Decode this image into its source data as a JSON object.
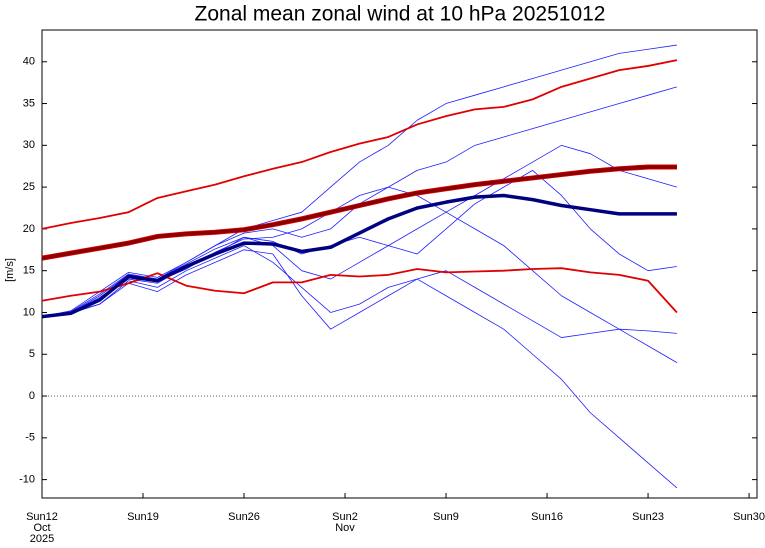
{
  "chart_data": {
    "type": "line",
    "title": "Zonal mean zonal wind at 10 hPa 20251012",
    "y_label": "[m/s]",
    "x": [
      0,
      2,
      4,
      6,
      8,
      10,
      12,
      14,
      16,
      18,
      20,
      22,
      24,
      26,
      28,
      30,
      32,
      34,
      36,
      38,
      40,
      42,
      44
    ],
    "xlim": [
      0,
      49.55
    ],
    "xticks": [
      {
        "value": 0,
        "label": "Sun12"
      },
      {
        "value": 7,
        "label": "Sun19"
      },
      {
        "value": 14,
        "label": "Sun26"
      },
      {
        "value": 21,
        "label": "Sun2"
      },
      {
        "value": 28,
        "label": "Sun9"
      },
      {
        "value": 35,
        "label": "Sun16"
      },
      {
        "value": 42,
        "label": "Sun23"
      },
      {
        "value": 49,
        "label": "Sun30"
      }
    ],
    "x_month_labels": [
      {
        "value": 0,
        "label": "Oct"
      },
      {
        "value": 21,
        "label": "Nov"
      }
    ],
    "x_year_label": {
      "value": 0,
      "label": "2025"
    },
    "ylim": [
      -12.2,
      43.8
    ],
    "yticks": [
      -10,
      -5,
      0,
      5,
      10,
      15,
      20,
      25,
      30,
      35,
      40
    ],
    "reference_line": 0,
    "series": [
      {
        "color": "#1f1fff",
        "width": 0.8,
        "values": [
          9.5,
          10,
          12,
          14.5,
          14,
          16,
          18,
          20,
          21,
          22,
          25,
          28,
          30,
          33,
          35,
          36,
          37,
          38,
          39,
          40,
          41,
          41.5,
          42
        ]
      },
      {
        "color": "#1f1fff",
        "width": 0.8,
        "values": [
          9.5,
          10,
          11,
          13.8,
          13,
          15,
          16.5,
          18,
          16,
          13,
          10,
          11,
          13,
          14,
          12,
          10,
          8,
          5,
          2,
          -2,
          -5,
          -8,
          -11
        ]
      },
      {
        "color": "#1f1fff",
        "width": 0.8,
        "values": [
          9.5,
          9.8,
          11.5,
          14,
          13.5,
          15.5,
          17,
          19,
          18,
          15,
          14,
          16,
          18,
          20,
          22,
          20,
          18,
          15,
          12,
          10,
          8,
          6,
          4
        ]
      },
      {
        "color": "#1f1fff",
        "width": 0.8,
        "values": [
          9.5,
          10.2,
          12.5,
          14.8,
          14.2,
          16,
          18,
          19.5,
          20,
          19,
          20,
          23,
          25,
          27,
          28,
          30,
          31,
          32,
          33,
          34,
          35,
          36,
          37
        ]
      },
      {
        "color": "#1f1fff",
        "width": 0.8,
        "values": [
          9.5,
          9.9,
          11,
          13.5,
          12.5,
          14.5,
          16,
          17.5,
          17,
          12,
          8,
          10,
          12,
          14,
          15,
          13,
          11,
          9,
          7,
          7.5,
          8,
          7.8,
          7.5
        ]
      },
      {
        "color": "#1f1fff",
        "width": 0.8,
        "values": [
          9.5,
          10,
          11.8,
          14.2,
          13.7,
          15.2,
          17.2,
          18.8,
          19,
          20,
          22,
          24,
          25,
          24,
          22,
          24,
          26,
          28,
          30,
          29,
          27,
          26,
          25
        ]
      },
      {
        "color": "#1f1fff",
        "width": 0.8,
        "values": [
          9.5,
          10.1,
          12.2,
          14.6,
          14,
          15.8,
          17.6,
          19,
          18.5,
          17,
          18,
          19,
          18,
          17,
          20,
          23,
          25,
          27,
          24,
          20,
          17,
          15,
          15.5
        ]
      },
      {
        "color": "#e00000",
        "width": 1.8,
        "values": [
          20,
          20.7,
          21.3,
          22,
          23.7,
          24.5,
          25.3,
          26.3,
          27.2,
          28,
          29.2,
          30.2,
          31,
          32.5,
          33.5,
          34.3,
          34.6,
          35.5,
          37,
          38,
          39,
          39.5,
          40.2
        ]
      },
      {
        "color": "#e00000",
        "width": 1.8,
        "values": [
          11.4,
          12,
          12.5,
          13.5,
          14.7,
          13.2,
          12.6,
          12.3,
          13.6,
          13.6,
          14.5,
          14.3,
          14.5,
          15.2,
          14.8,
          14.9,
          15,
          15.2,
          15.3,
          14.8,
          14.5,
          13.8,
          10
        ]
      },
      {
        "color": "#8b0000",
        "width": 3.5,
        "values": [
          16.5,
          17.1,
          17.7,
          18.3,
          19.1,
          19.4,
          19.6,
          19.9,
          20.5,
          21.2,
          22,
          22.8,
          23.6,
          24.3,
          24.8,
          25.3,
          25.7,
          26.1,
          26.5,
          26.9,
          27.2,
          27.4,
          27.4
        ]
      },
      {
        "color": "#000080",
        "width": 3.5,
        "values": [
          9.5,
          9.9,
          11.5,
          14.3,
          13.8,
          15.5,
          17,
          18.3,
          18.2,
          17.3,
          17.8,
          19.5,
          21.2,
          22.5,
          23.2,
          23.8,
          24,
          23.5,
          22.8,
          22.3,
          21.8,
          21.8,
          21.8
        ]
      }
    ],
    "tick_label_color": "#e00000"
  }
}
